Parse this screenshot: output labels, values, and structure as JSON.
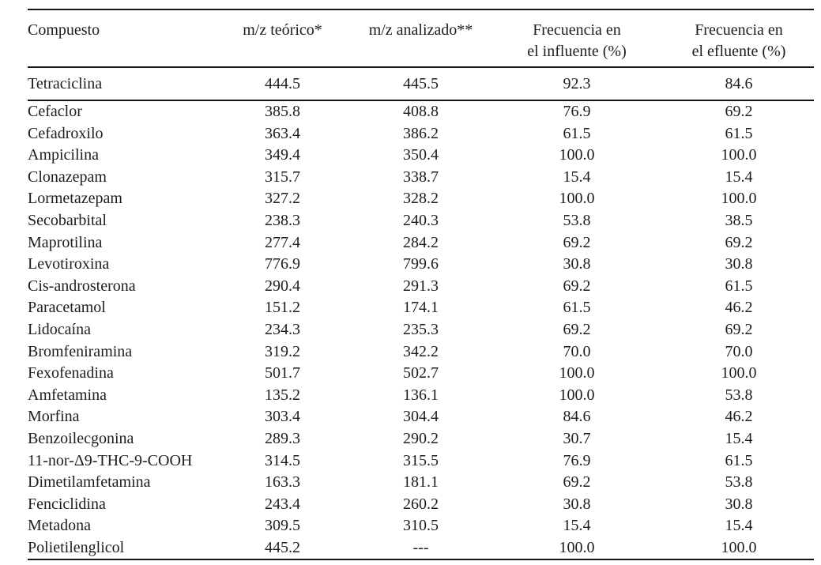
{
  "colors": {
    "background": "#ffffff",
    "text": "#1c1c24",
    "rule": "#141414"
  },
  "table": {
    "columns": [
      {
        "line1": "Compuesto"
      },
      {
        "line1": "m/z teórico*"
      },
      {
        "line1": "m/z analizado**"
      },
      {
        "line1": "Frecuencia en",
        "line2": "el influente (%)"
      },
      {
        "line1": "Frecuencia en",
        "line2": "el efluente (%)"
      }
    ],
    "first_row": {
      "compuesto": "Tetraciclina",
      "mz_teorico": "444.5",
      "mz_analizado": "445.5",
      "frec_influente": "92.3",
      "frec_efluente": "84.6"
    },
    "rows": [
      {
        "compuesto": "Cefaclor",
        "mz_teorico": "385.8",
        "mz_analizado": "408.8",
        "frec_influente": "76.9",
        "frec_efluente": "69.2"
      },
      {
        "compuesto": "Cefadroxilo",
        "mz_teorico": "363.4",
        "mz_analizado": "386.2",
        "frec_influente": "61.5",
        "frec_efluente": "61.5"
      },
      {
        "compuesto": "Ampicilina",
        "mz_teorico": "349.4",
        "mz_analizado": "350.4",
        "frec_influente": "100.0",
        "frec_efluente": "100.0"
      },
      {
        "compuesto": "Clonazepam",
        "mz_teorico": "315.7",
        "mz_analizado": "338.7",
        "frec_influente": "15.4",
        "frec_efluente": "15.4"
      },
      {
        "compuesto": "Lormetazepam",
        "mz_teorico": "327.2",
        "mz_analizado": "328.2",
        "frec_influente": "100.0",
        "frec_efluente": "100.0"
      },
      {
        "compuesto": "Secobarbital",
        "mz_teorico": "238.3",
        "mz_analizado": "240.3",
        "frec_influente": "53.8",
        "frec_efluente": "38.5"
      },
      {
        "compuesto": "Maprotilina",
        "mz_teorico": "277.4",
        "mz_analizado": "284.2",
        "frec_influente": "69.2",
        "frec_efluente": "69.2"
      },
      {
        "compuesto": "Levotiroxina",
        "mz_teorico": "776.9",
        "mz_analizado": "799.6",
        "frec_influente": "30.8",
        "frec_efluente": "30.8"
      },
      {
        "compuesto": "Cis-androsterona",
        "mz_teorico": "290.4",
        "mz_analizado": "291.3",
        "frec_influente": "69.2",
        "frec_efluente": "61.5"
      },
      {
        "compuesto": "Paracetamol",
        "mz_teorico": "151.2",
        "mz_analizado": "174.1",
        "frec_influente": "61.5",
        "frec_efluente": "46.2"
      },
      {
        "compuesto": "Lidocaína",
        "mz_teorico": "234.3",
        "mz_analizado": "235.3",
        "frec_influente": "69.2",
        "frec_efluente": "69.2"
      },
      {
        "compuesto": "Bromfeniramina",
        "mz_teorico": "319.2",
        "mz_analizado": "342.2",
        "frec_influente": "70.0",
        "frec_efluente": "70.0"
      },
      {
        "compuesto": "Fexofenadina",
        "mz_teorico": "501.7",
        "mz_analizado": "502.7",
        "frec_influente": "100.0",
        "frec_efluente": "100.0"
      },
      {
        "compuesto": "Amfetamina",
        "mz_teorico": "135.2",
        "mz_analizado": "136.1",
        "frec_influente": "100.0",
        "frec_efluente": "53.8"
      },
      {
        "compuesto": "Morfina",
        "mz_teorico": "303.4",
        "mz_analizado": "304.4",
        "frec_influente": "84.6",
        "frec_efluente": "46.2"
      },
      {
        "compuesto": "Benzoilecgonina",
        "mz_teorico": "289.3",
        "mz_analizado": "290.2",
        "frec_influente": "30.7",
        "frec_efluente": "15.4"
      },
      {
        "compuesto": "11-nor-Δ9-THC-9-COOH",
        "mz_teorico": "314.5",
        "mz_analizado": "315.5",
        "frec_influente": "76.9",
        "frec_efluente": "61.5"
      },
      {
        "compuesto": "Dimetilamfetamina",
        "mz_teorico": "163.3",
        "mz_analizado": "181.1",
        "frec_influente": "69.2",
        "frec_efluente": "53.8"
      },
      {
        "compuesto": "Fenciclidina",
        "mz_teorico": "243.4",
        "mz_analizado": "260.2",
        "frec_influente": "30.8",
        "frec_efluente": "30.8"
      },
      {
        "compuesto": "Metadona",
        "mz_teorico": "309.5",
        "mz_analizado": "310.5",
        "frec_influente": "15.4",
        "frec_efluente": "15.4"
      },
      {
        "compuesto": "Polietilenglicol",
        "mz_teorico": "445.2",
        "mz_analizado": "---",
        "frec_influente": "100.0",
        "frec_efluente": "100.0"
      }
    ]
  }
}
